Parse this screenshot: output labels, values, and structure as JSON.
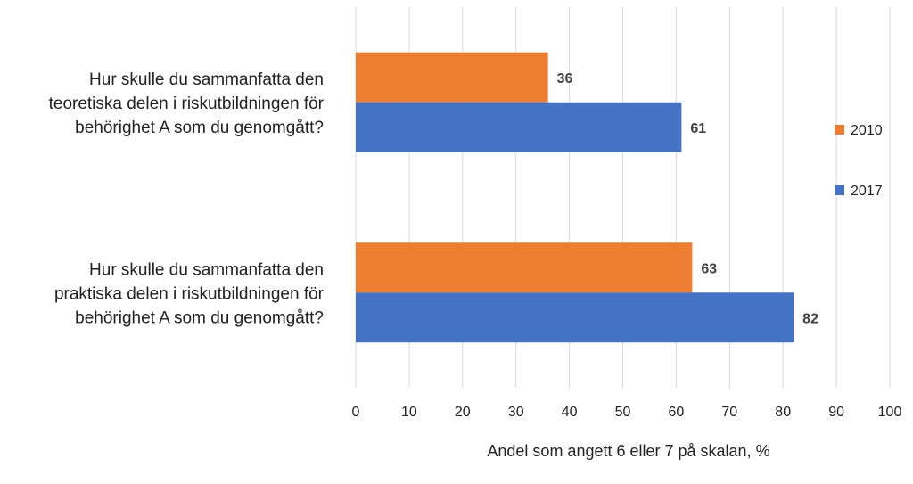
{
  "chart_data": {
    "type": "bar",
    "orientation": "horizontal",
    "categories": [
      [
        "Hur skulle du sammanfatta den",
        "teoretiska delen i riskutbildningen för",
        "behörighet A som du genomgått?"
      ],
      [
        "Hur skulle du sammanfatta den",
        "praktiska delen i riskutbildningen för",
        "behörighet A som du genomgått?"
      ]
    ],
    "series": [
      {
        "name": "2010",
        "color": "#ED7D31",
        "values": [
          36,
          63
        ]
      },
      {
        "name": "2017",
        "color": "#4472C4",
        "values": [
          61,
          82
        ]
      }
    ],
    "xlabel": "Andel som angett 6 eller 7 på skalan, %",
    "xlim": [
      0,
      100
    ],
    "xticks": [
      0,
      10,
      20,
      30,
      40,
      50,
      60,
      70,
      80,
      90,
      100
    ],
    "grid": true,
    "legend_position": "right",
    "data_labels": true
  }
}
